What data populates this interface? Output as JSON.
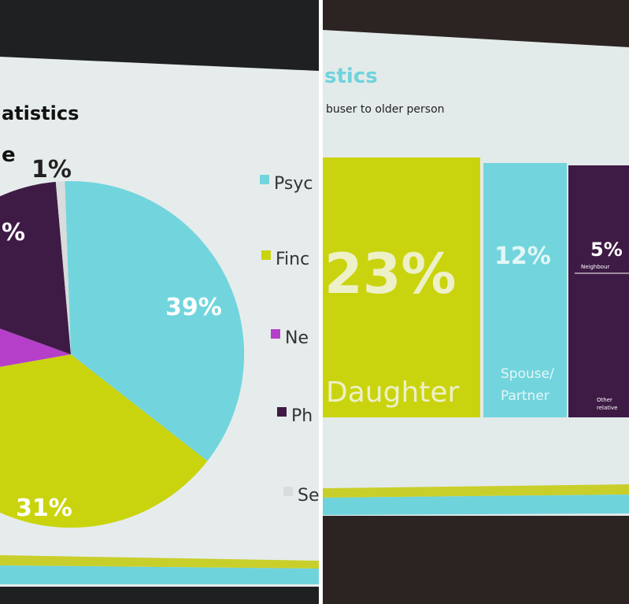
{
  "left_slide": {
    "title": "atistics",
    "fragment": "e",
    "labels": [
      "1%",
      "%",
      "39%",
      "31%"
    ],
    "legend": [
      "Psyc",
      "Finc",
      "Ne",
      "Ph",
      "Se"
    ]
  },
  "right_slide": {
    "title": "stics",
    "subtitle": "buser to older person",
    "blocks": [
      {
        "value": "23%",
        "label": "Daughter"
      },
      {
        "value": "12%",
        "label": "Spouse/ Partner"
      },
      {
        "value": "5%",
        "label": "Neighbour"
      },
      {
        "label": "Other relative"
      }
    ]
  }
}
